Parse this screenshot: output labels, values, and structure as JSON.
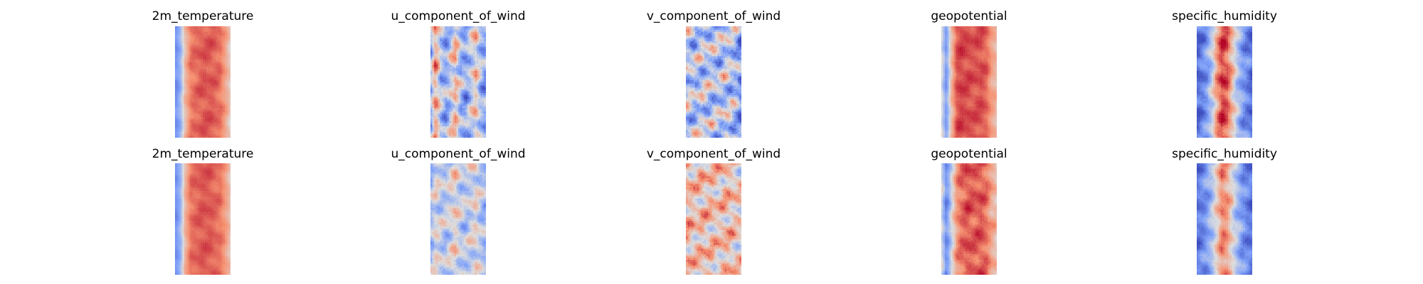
{
  "chart_data": [
    {
      "type": "heatmap",
      "title": "2m_temperature",
      "colormap": "coolwarm",
      "grid": false,
      "columns": [
        0.18,
        0.3,
        0.62,
        0.78,
        0.82,
        0.84,
        0.86,
        0.85,
        0.84,
        0.8,
        0.7,
        0.55
      ],
      "texture": 0.07
    },
    {
      "type": "heatmap",
      "title": "u_component_of_wind",
      "colormap": "coolwarm",
      "grid": false,
      "columns": [
        0.3,
        0.72,
        0.4,
        0.28,
        0.45,
        0.62,
        0.35,
        0.28,
        0.42,
        0.58,
        0.34,
        0.25
      ],
      "texture": 0.28
    },
    {
      "type": "heatmap",
      "title": "v_component_of_wind",
      "colormap": "coolwarm",
      "grid": false,
      "columns": [
        0.42,
        0.4,
        0.38,
        0.44,
        0.4,
        0.42,
        0.38,
        0.4,
        0.43,
        0.39,
        0.35,
        0.2
      ],
      "texture": 0.36
    },
    {
      "type": "heatmap",
      "title": "geopotential",
      "colormap": "coolwarm",
      "grid": false,
      "columns": [
        0.52,
        0.22,
        0.62,
        0.86,
        0.9,
        0.88,
        0.87,
        0.86,
        0.88,
        0.82,
        0.7,
        0.62
      ],
      "texture": 0.08
    },
    {
      "type": "heatmap",
      "title": "specific_humidity",
      "colormap": "coolwarm",
      "grid": false,
      "columns": [
        0.08,
        0.14,
        0.24,
        0.42,
        0.72,
        0.9,
        0.86,
        0.62,
        0.4,
        0.26,
        0.16,
        0.1
      ],
      "texture": 0.18
    },
    {
      "type": "heatmap",
      "title": "2m_temperature",
      "colormap": "coolwarm",
      "grid": false,
      "columns": [
        0.18,
        0.3,
        0.64,
        0.8,
        0.83,
        0.85,
        0.86,
        0.85,
        0.83,
        0.8,
        0.72,
        0.58
      ],
      "texture": 0.06
    },
    {
      "type": "heatmap",
      "title": "u_component_of_wind",
      "colormap": "coolwarm",
      "grid": false,
      "columns": [
        0.34,
        0.5,
        0.44,
        0.4,
        0.48,
        0.55,
        0.42,
        0.4,
        0.46,
        0.52,
        0.4,
        0.34
      ],
      "texture": 0.22
    },
    {
      "type": "heatmap",
      "title": "v_component_of_wind",
      "colormap": "coolwarm",
      "grid": false,
      "columns": [
        0.66,
        0.62,
        0.58,
        0.64,
        0.6,
        0.62,
        0.58,
        0.6,
        0.63,
        0.6,
        0.58,
        0.55
      ],
      "texture": 0.28
    },
    {
      "type": "heatmap",
      "title": "geopotential",
      "colormap": "coolwarm",
      "grid": false,
      "columns": [
        0.5,
        0.18,
        0.45,
        0.72,
        0.82,
        0.86,
        0.85,
        0.84,
        0.86,
        0.8,
        0.68,
        0.6
      ],
      "texture": 0.12
    },
    {
      "type": "heatmap",
      "title": "specific_humidity",
      "colormap": "coolwarm",
      "grid": false,
      "columns": [
        0.12,
        0.16,
        0.24,
        0.38,
        0.56,
        0.76,
        0.72,
        0.52,
        0.36,
        0.24,
        0.16,
        0.12
      ],
      "texture": 0.16
    }
  ]
}
